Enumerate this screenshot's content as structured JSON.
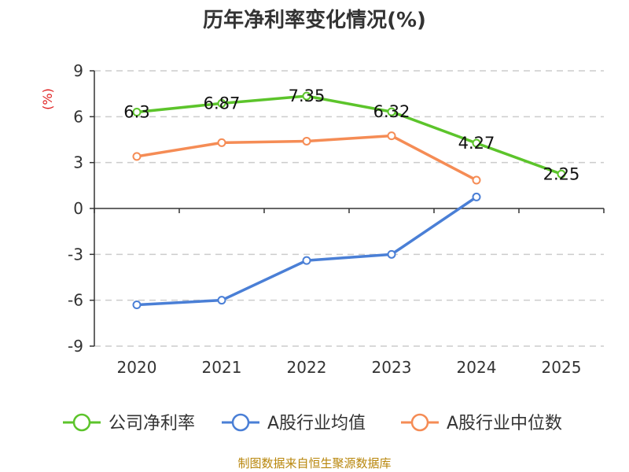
{
  "chart_data": {
    "type": "line",
    "title": "历年净利率变化情况(%)",
    "unit_label": "(%)",
    "categories": [
      "2020",
      "2021",
      "2022",
      "2023",
      "2024",
      "2025"
    ],
    "ylim": [
      -9,
      9
    ],
    "yticks": [
      9,
      6,
      3,
      0,
      -3,
      -6,
      -9
    ],
    "grid": true,
    "legend_position": "bottom",
    "series": [
      {
        "name": "公司净利率",
        "color": "#5cc42b",
        "values": [
          6.3,
          6.87,
          7.35,
          6.32,
          4.27,
          2.25
        ],
        "labels": [
          "6.3",
          "6.87",
          "7.35",
          "6.32",
          "4.27",
          "2.25"
        ]
      },
      {
        "name": "A股行业均值",
        "color": "#4a7fd6",
        "values": [
          -6.3,
          -6.0,
          -3.4,
          -3.0,
          0.75,
          null
        ]
      },
      {
        "name": "A股行业中位数",
        "color": "#f58c55",
        "values": [
          3.4,
          4.3,
          4.4,
          4.75,
          1.85,
          null
        ]
      }
    ]
  },
  "source": "制图数据来自恒生聚源数据库"
}
